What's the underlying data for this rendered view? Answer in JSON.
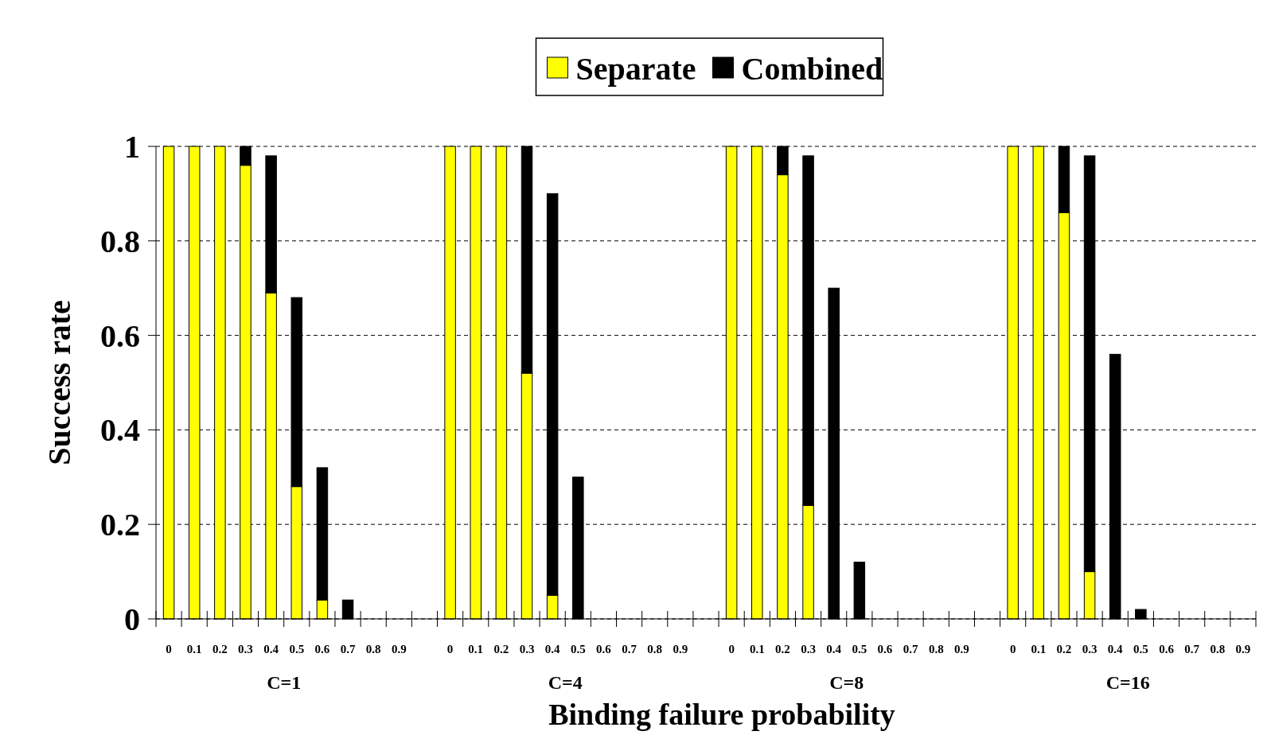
{
  "chart_data": {
    "type": "bar",
    "stacked": true,
    "xlabel": "Binding failure probability",
    "ylabel": "Success rate",
    "categories": [
      "0",
      "0.1",
      "0.2",
      "0.3",
      "0.4",
      "0.5",
      "0.6",
      "0.7",
      "0.8",
      "0.9",
      null,
      "0",
      "0.1",
      "0.2",
      "0.3",
      "0.4",
      "0.5",
      "0.6",
      "0.7",
      "0.8",
      "0.9",
      null,
      "0",
      "0.1",
      "0.2",
      "0.3",
      "0.4",
      "0.5",
      "0.6",
      "0.7",
      "0.8",
      "0.9",
      null,
      "0",
      "0.1",
      "0.2",
      "0.3",
      "0.4",
      "0.5",
      "0.6",
      "0.7",
      "0.8",
      "0.9"
    ],
    "series": [
      {
        "name": "Separate",
        "color": "#ffff00",
        "values": [
          1,
          1,
          1,
          0.96,
          0.69,
          0.28,
          0.04,
          0,
          0,
          0,
          null,
          1,
          1,
          1,
          0.52,
          0.05,
          0,
          0,
          0,
          0,
          0,
          null,
          1,
          1,
          0.94,
          0.24,
          0,
          0,
          0,
          0,
          0,
          0,
          null,
          1,
          1,
          0.86,
          0.1,
          0,
          0,
          0,
          0,
          0,
          0
        ]
      },
      {
        "name": "Combined",
        "color": "#000000",
        "values": [
          0,
          0,
          0,
          0.04,
          0.29,
          0.4,
          0.28,
          0.04,
          0,
          0,
          null,
          0,
          0,
          0,
          0.48,
          0.85,
          0.3,
          0,
          0,
          0,
          0,
          null,
          0,
          0,
          0.06,
          0.74,
          0.7,
          0.12,
          0,
          0,
          0,
          0,
          null,
          0,
          0,
          0.14,
          0.88,
          0.56,
          0.02,
          0,
          0,
          0,
          0
        ]
      }
    ],
    "annotations": [
      "C=1",
      "C=4",
      "C=8",
      "C=16"
    ],
    "ylim": [
      0,
      1
    ],
    "yticks": [
      0,
      0.2,
      0.4,
      0.6,
      0.8,
      1
    ],
    "grid": "y",
    "legend": "top"
  }
}
